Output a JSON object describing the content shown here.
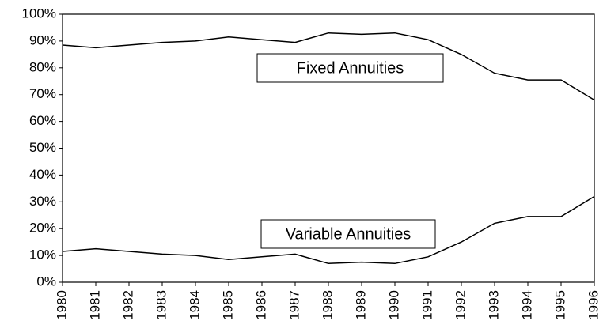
{
  "chart_data": {
    "type": "line",
    "x": [
      1980,
      1981,
      1982,
      1983,
      1984,
      1985,
      1986,
      1987,
      1988,
      1989,
      1990,
      1991,
      1992,
      1993,
      1994,
      1995,
      1996
    ],
    "series": [
      {
        "name": "Fixed Annuities",
        "color": "#000000",
        "values": [
          88.5,
          87.5,
          88.5,
          89.5,
          90,
          91.5,
          90.5,
          89.5,
          93,
          92.5,
          93,
          90.5,
          85,
          78,
          75.5,
          75.5,
          68
        ]
      },
      {
        "name": "Variable Annuities",
        "color": "#000000",
        "values": [
          11.5,
          12.5,
          11.5,
          10.5,
          10,
          8.5,
          9.5,
          10.5,
          7,
          7.5,
          7,
          9.5,
          15,
          22,
          24.5,
          24.5,
          32
        ]
      }
    ],
    "xlim": [
      1980,
      1996
    ],
    "xticks": [
      1980,
      1981,
      1982,
      1983,
      1984,
      1985,
      1986,
      1987,
      1988,
      1989,
      1990,
      1991,
      1992,
      1993,
      1994,
      1995,
      1996
    ],
    "ylim": [
      0,
      100
    ],
    "yticks": [
      {
        "value": 0,
        "label": "0%"
      },
      {
        "value": 10,
        "label": "10%"
      },
      {
        "value": 20,
        "label": "20%"
      },
      {
        "value": 30,
        "label": "30%"
      },
      {
        "value": 40,
        "label": "40%"
      },
      {
        "value": 50,
        "label": "50%"
      },
      {
        "value": 60,
        "label": "60%"
      },
      {
        "value": 70,
        "label": "70%"
      },
      {
        "value": 80,
        "label": "80%"
      },
      {
        "value": 90,
        "label": "90%"
      },
      {
        "value": 100,
        "label": "100%"
      }
    ],
    "grid": false
  }
}
